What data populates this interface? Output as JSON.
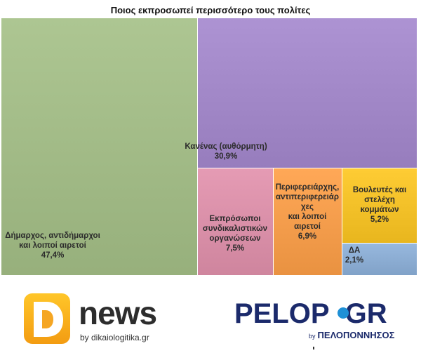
{
  "chart_data": {
    "type": "treemap",
    "title": "Ποιος εκπροσωπεί περισσότερο τους πολίτες",
    "items": [
      {
        "label_lines": [
          "Δήμαρχος, αντιδήμαρχοι",
          "και λοιποί αιρετοί"
        ],
        "value_text": "47,4%",
        "value": 47.4,
        "color": "#a5be8a"
      },
      {
        "label_lines": [
          "Κανένας (αυθόρμητη)"
        ],
        "value_text": "30,9%",
        "value": 30.9,
        "color": "#a58bcb"
      },
      {
        "label_lines": [
          "Εκπρόσωποι",
          "συνδικαλιστικών",
          "οργανώσεων"
        ],
        "value_text": "7,5%",
        "value": 7.5,
        "color": "#dd93ac"
      },
      {
        "label_lines": [
          "Περιφερειάρχης,",
          "αντιπεριφερειάρ",
          "χες",
          "και λοιποί",
          "αιρετοί"
        ],
        "value_text": "6,9%",
        "value": 6.9,
        "color": "#f7a04f"
      },
      {
        "label_lines": [
          "Βουλευτές και",
          "στελέχη",
          "κομμάτων"
        ],
        "value_text": "5,2%",
        "value": 5.2,
        "color": "#f6c42c"
      },
      {
        "label_lines": [
          "ΔΑ"
        ],
        "value_text": "2,1%",
        "value": 2.1,
        "color": "#8fb0d6"
      }
    ]
  },
  "logos": {
    "dnews": {
      "mark": "D",
      "word": "news",
      "sub": "by dikaiologitika.gr"
    },
    "pelop": {
      "word": "PELOP",
      "suffix": "GR",
      "by": "by",
      "sub": "ΠΕΛΟΠΟΝΝΗΣΟΣ"
    }
  }
}
